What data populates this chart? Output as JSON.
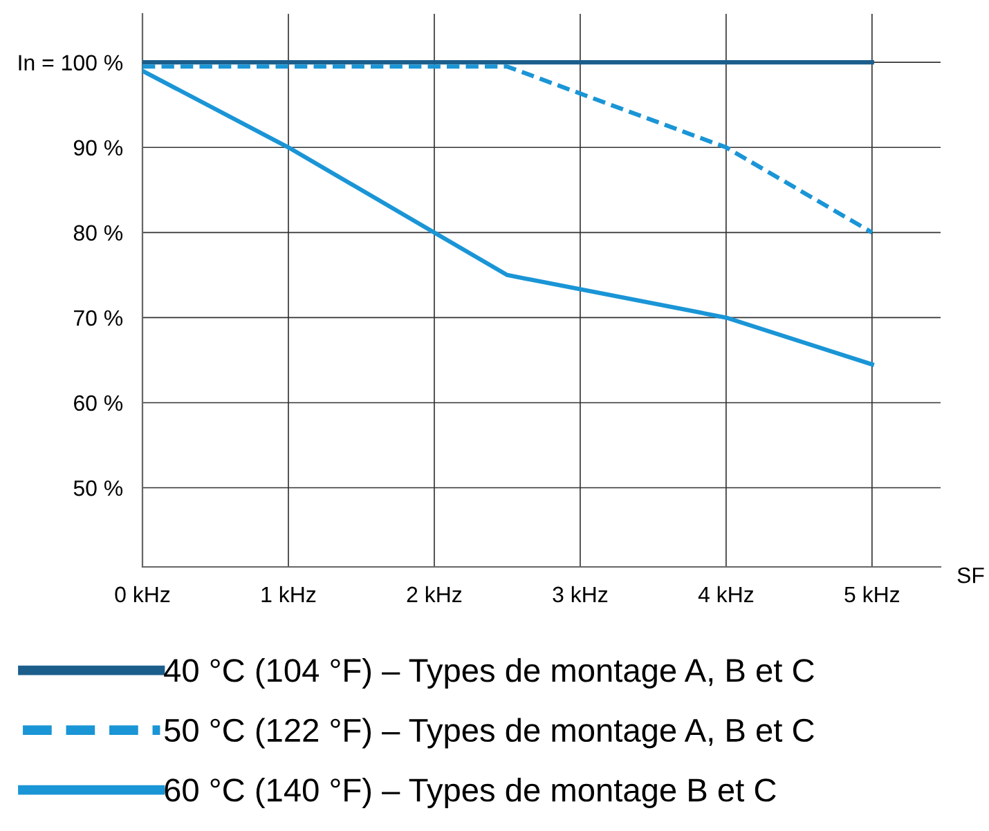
{
  "chart_data": {
    "type": "line",
    "xlabel": "SF",
    "x": [
      0,
      1,
      2,
      2.5,
      4,
      5
    ],
    "series": [
      {
        "name": "40 °C (104 °F) – Types de montage A, B et C",
        "color": "#1b5e8c",
        "line_style": "solid",
        "values": [
          100,
          null,
          null,
          null,
          null,
          100
        ]
      },
      {
        "name": "50 °C (122 °F) – Types de montage A, B et C",
        "color": "#1a95d6",
        "line_style": "dashed",
        "values": [
          99.5,
          null,
          null,
          99.5,
          90,
          80
        ]
      },
      {
        "name": "60 °C (140 °F) – Types de montage B et C",
        "color": "#1a95d6",
        "line_style": "solid",
        "values": [
          99,
          90,
          80,
          75,
          70,
          64.5
        ]
      }
    ],
    "xlim": [
      0,
      5.47
    ],
    "ylim": [
      40.7,
      105.7
    ],
    "xticks": [
      {
        "value": 0,
        "label": "0 kHz"
      },
      {
        "value": 1,
        "label": "1 kHz"
      },
      {
        "value": 2,
        "label": "2 kHz"
      },
      {
        "value": 3,
        "label": "3 kHz"
      },
      {
        "value": 4,
        "label": "4 kHz"
      },
      {
        "value": 5,
        "label": "5 kHz"
      }
    ],
    "yticks": [
      {
        "value": 50,
        "label": "50 %"
      },
      {
        "value": 60,
        "label": "60 %"
      },
      {
        "value": 70,
        "label": "70 %"
      },
      {
        "value": 80,
        "label": "80 %"
      },
      {
        "value": 90,
        "label": "90 %"
      },
      {
        "value": 100,
        "label": "In = 100 %"
      }
    ],
    "grid": true,
    "legend": "bottom",
    "marker": "none"
  }
}
